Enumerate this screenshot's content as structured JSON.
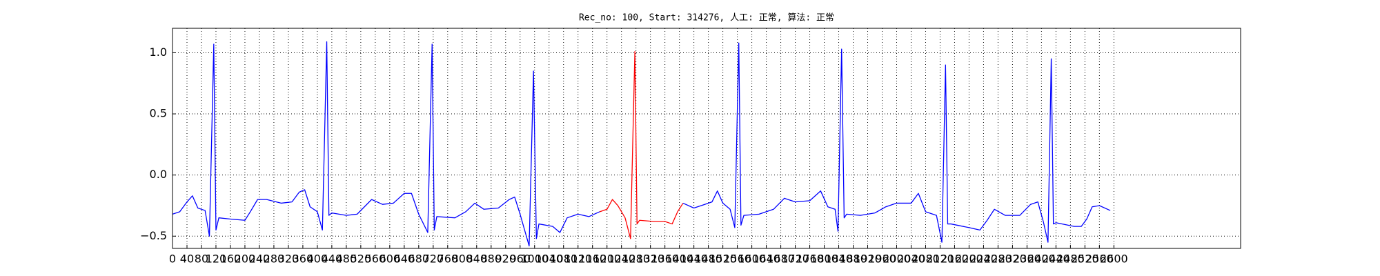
{
  "chart_data": {
    "type": "line",
    "title": "Rec_no: 100, Start: 314276, 人工: 正常, 算法: 正常",
    "xlim": [
      0,
      2950
    ],
    "ylim": [
      -0.6,
      1.2
    ],
    "xticks": [
      0,
      40,
      80,
      120,
      160,
      200,
      240,
      280,
      320,
      360,
      400,
      440,
      480,
      520,
      560,
      600,
      640,
      680,
      720,
      760,
      800,
      840,
      880,
      920,
      960,
      1000,
      1040,
      1080,
      1120,
      1160,
      1200,
      1240,
      1280,
      1320,
      1360,
      1400,
      1440,
      1480,
      1520,
      1560,
      1600,
      1640,
      1680,
      1720,
      1760,
      1800,
      1840,
      1880,
      1920,
      1960,
      2000,
      2040,
      2080,
      2120,
      2160,
      2200,
      2240,
      2280,
      2320,
      2360,
      2400,
      2440,
      2480,
      2520,
      2560,
      2600
    ],
    "yticks": [
      {
        "value": -0.5,
        "label": "−0.5"
      },
      {
        "value": 0,
        "label": "0.0"
      },
      0.5,
      {
        "value": 1,
        "label": "1.0"
      }
    ],
    "grid": true,
    "series": [
      {
        "color": "#0000ff",
        "x": [
          0,
          20,
          40,
          55,
          70,
          90,
          102,
          114,
          120,
          128,
          160,
          200,
          215,
          235,
          260,
          300,
          330,
          350,
          365,
          380,
          400,
          414,
          426,
          432,
          440,
          480,
          510,
          530,
          550,
          580,
          610,
          640,
          660,
          680,
          705,
          717,
          723,
          730,
          780,
          810,
          835,
          860,
          900,
          930,
          945,
          960,
          985,
          997,
          1005,
          1012,
          1050,
          1070,
          1090,
          1120,
          1150,
          1180
        ],
        "values": [
          -0.32,
          -0.3,
          -0.22,
          -0.17,
          -0.27,
          -0.29,
          -0.5,
          1.07,
          -0.45,
          -0.35,
          -0.36,
          -0.37,
          -0.3,
          -0.2,
          -0.2,
          -0.23,
          -0.22,
          -0.14,
          -0.12,
          -0.26,
          -0.3,
          -0.45,
          1.09,
          -0.33,
          -0.31,
          -0.33,
          -0.32,
          -0.26,
          -0.2,
          -0.24,
          -0.23,
          -0.15,
          -0.15,
          -0.32,
          -0.47,
          1.07,
          -0.45,
          -0.34,
          -0.35,
          -0.3,
          -0.23,
          -0.28,
          -0.27,
          -0.2,
          -0.18,
          -0.32,
          -0.58,
          0.85,
          -0.52,
          -0.4,
          -0.42,
          -0.47,
          -0.35,
          -0.32,
          -0.34,
          -0.3
        ]
      },
      {
        "color": "#ff0000",
        "x": [
          1180,
          1200,
          1215,
          1230,
          1250,
          1265,
          1277,
          1283,
          1290,
          1330,
          1360,
          1380,
          1395,
          1410
        ],
        "values": [
          -0.3,
          -0.28,
          -0.2,
          -0.25,
          -0.35,
          -0.52,
          1.01,
          -0.4,
          -0.37,
          -0.38,
          -0.38,
          -0.4,
          -0.3,
          -0.23
        ]
      },
      {
        "color": "#0000ff",
        "x": [
          1410,
          1440,
          1470,
          1490,
          1505,
          1520,
          1540,
          1553,
          1564,
          1570,
          1578,
          1620,
          1660,
          1690,
          1720,
          1760,
          1790,
          1810,
          1830,
          1838,
          1848,
          1855,
          1862,
          1900,
          1940,
          1970,
          2000,
          2040,
          2060,
          2080,
          2110,
          2125,
          2135,
          2141,
          2150,
          2200,
          2230,
          2250,
          2270,
          2300,
          2340,
          2370,
          2390,
          2405,
          2418,
          2427,
          2433,
          2440,
          2490,
          2510,
          2525,
          2540,
          2560,
          2590
        ],
        "values": [
          -0.23,
          -0.27,
          -0.24,
          -0.22,
          -0.13,
          -0.23,
          -0.28,
          -0.43,
          1.08,
          -0.41,
          -0.33,
          -0.32,
          -0.28,
          -0.19,
          -0.22,
          -0.21,
          -0.13,
          -0.26,
          -0.28,
          -0.46,
          1.03,
          -0.35,
          -0.32,
          -0.33,
          -0.31,
          -0.26,
          -0.23,
          -0.23,
          -0.15,
          -0.3,
          -0.33,
          -0.55,
          0.9,
          -0.4,
          -0.4,
          -0.43,
          -0.45,
          -0.37,
          -0.28,
          -0.33,
          -0.33,
          -0.24,
          -0.22,
          -0.38,
          -0.55,
          0.95,
          -0.4,
          -0.39,
          -0.42,
          -0.42,
          -0.36,
          -0.26,
          -0.25,
          -0.29
        ]
      }
    ]
  }
}
